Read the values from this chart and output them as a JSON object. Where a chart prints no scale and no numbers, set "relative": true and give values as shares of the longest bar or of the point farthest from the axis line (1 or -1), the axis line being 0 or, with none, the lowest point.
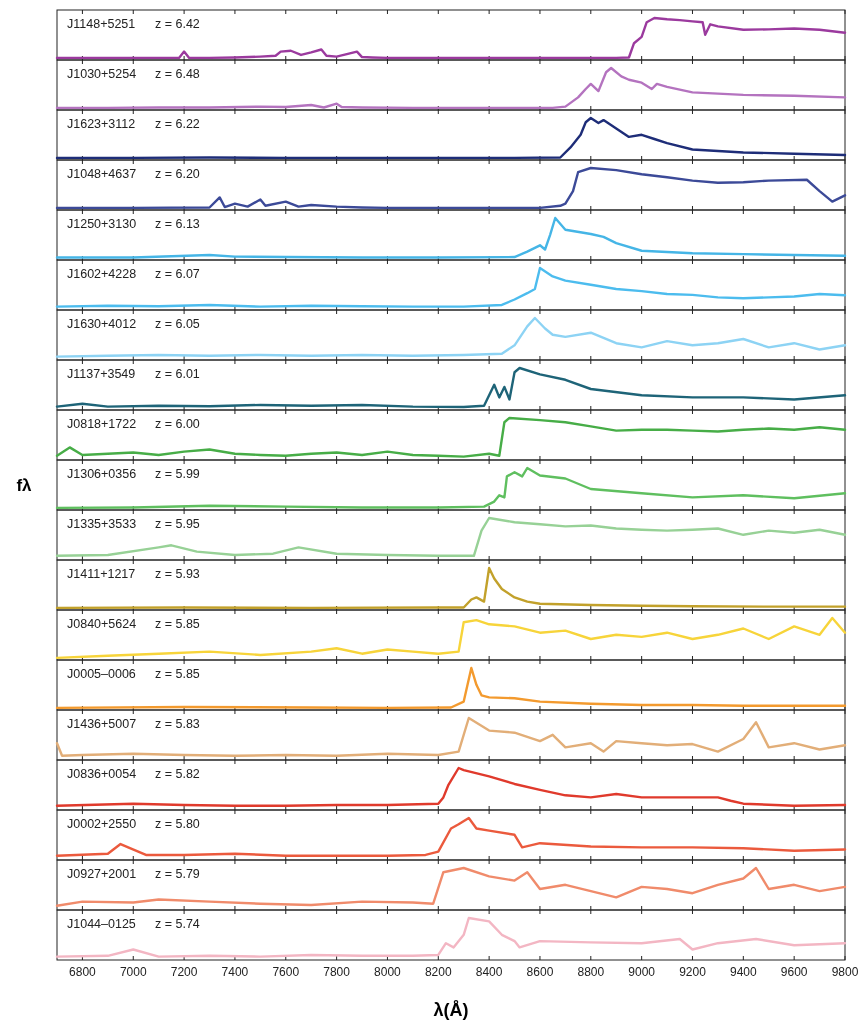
{
  "chart_data": [
    {
      "type": "line",
      "relative": true,
      "xlim": [
        6700,
        9800
      ],
      "xticks": [
        6800,
        7000,
        7200,
        7400,
        7600,
        7800,
        8000,
        8200,
        8400,
        8600,
        8800,
        9000,
        9200,
        9400,
        9600,
        9800
      ],
      "tick_labels": false,
      "annotations": [
        "J1148+5251",
        "z = 6.42"
      ],
      "color": "#9b3a9e",
      "x": [
        6700,
        6800,
        6900,
        7000,
        7100,
        7180,
        7200,
        7220,
        7300,
        7400,
        7500,
        7560,
        7580,
        7620,
        7660,
        7700,
        7740,
        7760,
        7800,
        7880,
        7900,
        7940,
        8000,
        8200,
        8400,
        8600,
        8800,
        8900,
        8950,
        8970,
        9000,
        9020,
        9050,
        9100,
        9150,
        9200,
        9240,
        9250,
        9270,
        9300,
        9400,
        9500,
        9600,
        9700,
        9800
      ],
      "values": [
        0.05,
        0.05,
        0.05,
        0.05,
        0.05,
        0.05,
        0.2,
        0.05,
        0.05,
        0.06,
        0.08,
        0.1,
        0.2,
        0.22,
        0.12,
        0.18,
        0.25,
        0.1,
        0.08,
        0.2,
        0.07,
        0.06,
        0.05,
        0.05,
        0.05,
        0.05,
        0.05,
        0.05,
        0.06,
        0.4,
        0.55,
        0.9,
        1,
        0.97,
        0.95,
        0.92,
        0.9,
        0.6,
        0.85,
        0.8,
        0.72,
        0.73,
        0.75,
        0.72,
        0.65
      ]
    },
    {
      "type": "line",
      "relative": true,
      "xlim": [
        6700,
        9800
      ],
      "xticks": [
        6800,
        7000,
        7200,
        7400,
        7600,
        7800,
        8000,
        8200,
        8400,
        8600,
        8800,
        9000,
        9200,
        9400,
        9600,
        9800
      ],
      "tick_labels": false,
      "annotations": [
        "J1030+5254",
        "z = 6.48"
      ],
      "color": "#b473bf",
      "x": [
        6700,
        6900,
        7100,
        7300,
        7500,
        7600,
        7700,
        7750,
        7800,
        7820,
        7900,
        8100,
        8300,
        8500,
        8650,
        8700,
        8750,
        8780,
        8800,
        8830,
        8860,
        8880,
        8920,
        8950,
        9000,
        9040,
        9060,
        9100,
        9200,
        9400,
        9600,
        9800
      ],
      "values": [
        0.05,
        0.05,
        0.06,
        0.06,
        0.08,
        0.07,
        0.12,
        0.06,
        0.15,
        0.07,
        0.06,
        0.05,
        0.05,
        0.05,
        0.05,
        0.08,
        0.3,
        0.5,
        0.62,
        0.45,
        0.9,
        1,
        0.8,
        0.72,
        0.65,
        0.5,
        0.62,
        0.55,
        0.42,
        0.36,
        0.34,
        0.3
      ]
    },
    {
      "type": "line",
      "relative": true,
      "xlim": [
        6700,
        9800
      ],
      "xticks": [
        6800,
        7000,
        7200,
        7400,
        7600,
        7800,
        8000,
        8200,
        8400,
        8600,
        8800,
        9000,
        9200,
        9400,
        9600,
        9800
      ],
      "tick_labels": false,
      "annotations": [
        "J1623+3112",
        "z = 6.22"
      ],
      "color": "#1e2d78",
      "x": [
        6700,
        7000,
        7300,
        7600,
        7900,
        8200,
        8500,
        8680,
        8720,
        8760,
        8780,
        8800,
        8830,
        8850,
        8900,
        8950,
        9000,
        9050,
        9100,
        9200,
        9400,
        9600,
        9800
      ],
      "values": [
        0.05,
        0.05,
        0.06,
        0.05,
        0.05,
        0.05,
        0.05,
        0.06,
        0.3,
        0.6,
        0.9,
        1,
        0.88,
        0.95,
        0.75,
        0.55,
        0.6,
        0.5,
        0.4,
        0.25,
        0.18,
        0.15,
        0.12
      ]
    },
    {
      "type": "line",
      "relative": true,
      "xlim": [
        6700,
        9800
      ],
      "xticks": [
        6800,
        7000,
        7200,
        7400,
        7600,
        7800,
        8000,
        8200,
        8400,
        8600,
        8800,
        9000,
        9200,
        9400,
        9600,
        9800
      ],
      "tick_labels": false,
      "annotations": [
        "J1048+4637",
        "z = 6.20"
      ],
      "color": "#3c4a98",
      "x": [
        6700,
        7000,
        7300,
        7340,
        7360,
        7400,
        7450,
        7500,
        7520,
        7600,
        7650,
        7700,
        7800,
        7900,
        8000,
        8200,
        8400,
        8600,
        8680,
        8700,
        8730,
        8750,
        8800,
        8900,
        9000,
        9100,
        9200,
        9300,
        9400,
        9500,
        9650,
        9700,
        9750,
        9800
      ],
      "values": [
        0.05,
        0.05,
        0.06,
        0.3,
        0.07,
        0.15,
        0.08,
        0.25,
        0.1,
        0.2,
        0.08,
        0.12,
        0.08,
        0.06,
        0.05,
        0.05,
        0.05,
        0.05,
        0.1,
        0.15,
        0.45,
        0.9,
        1,
        0.95,
        0.85,
        0.78,
        0.7,
        0.65,
        0.66,
        0.7,
        0.72,
        0.45,
        0.2,
        0.35
      ]
    },
    {
      "type": "line",
      "relative": true,
      "xlim": [
        6700,
        9800
      ],
      "xticks": [
        6800,
        7000,
        7200,
        7400,
        7600,
        7800,
        8000,
        8200,
        8400,
        8600,
        8800,
        9000,
        9200,
        9400,
        9600,
        9800
      ],
      "tick_labels": false,
      "annotations": [
        "J1250+3130",
        "z = 6.13"
      ],
      "color": "#45b5e6",
      "x": [
        6700,
        7000,
        7300,
        7400,
        7600,
        7900,
        8200,
        8500,
        8550,
        8600,
        8620,
        8640,
        8660,
        8700,
        8800,
        8850,
        8900,
        9000,
        9200,
        9400,
        9600,
        9800
      ],
      "values": [
        0.06,
        0.06,
        0.12,
        0.08,
        0.07,
        0.06,
        0.06,
        0.07,
        0.2,
        0.35,
        0.25,
        0.6,
        1,
        0.72,
        0.62,
        0.55,
        0.4,
        0.22,
        0.16,
        0.14,
        0.12,
        0.1
      ]
    },
    {
      "type": "line",
      "relative": true,
      "xlim": [
        6700,
        9800
      ],
      "xticks": [
        6800,
        7000,
        7200,
        7400,
        7600,
        7800,
        8000,
        8200,
        8400,
        8600,
        8800,
        9000,
        9200,
        9400,
        9600,
        9800
      ],
      "tick_labels": false,
      "annotations": [
        "J1602+4228",
        "z = 6.07"
      ],
      "color": "#4cbcee",
      "x": [
        6700,
        6900,
        7100,
        7300,
        7500,
        7700,
        7900,
        8100,
        8300,
        8450,
        8500,
        8550,
        8580,
        8600,
        8650,
        8700,
        8800,
        8900,
        9000,
        9100,
        9200,
        9300,
        9400,
        9500,
        9600,
        9700,
        9800
      ],
      "values": [
        0.08,
        0.1,
        0.09,
        0.12,
        0.08,
        0.1,
        0.09,
        0.08,
        0.08,
        0.12,
        0.25,
        0.4,
        0.5,
        1,
        0.8,
        0.7,
        0.6,
        0.5,
        0.45,
        0.38,
        0.36,
        0.3,
        0.28,
        0.3,
        0.32,
        0.38,
        0.35
      ]
    },
    {
      "type": "line",
      "relative": true,
      "xlim": [
        6700,
        9800
      ],
      "xticks": [
        6800,
        7000,
        7200,
        7400,
        7600,
        7800,
        8000,
        8200,
        8400,
        8600,
        8800,
        9000,
        9200,
        9400,
        9600,
        9800
      ],
      "tick_labels": false,
      "annotations": [
        "J1630+4012",
        "z = 6.05"
      ],
      "color": "#8dd3f4",
      "x": [
        6700,
        6900,
        7100,
        7300,
        7500,
        7700,
        7900,
        8100,
        8300,
        8450,
        8500,
        8550,
        8580,
        8620,
        8650,
        8700,
        8800,
        8900,
        9000,
        9100,
        9200,
        9300,
        9400,
        9500,
        9600,
        9700,
        9800
      ],
      "values": [
        0.08,
        0.1,
        0.12,
        0.1,
        0.12,
        0.1,
        0.12,
        0.1,
        0.12,
        0.15,
        0.35,
        0.8,
        1,
        0.75,
        0.6,
        0.55,
        0.65,
        0.4,
        0.3,
        0.45,
        0.35,
        0.4,
        0.5,
        0.3,
        0.4,
        0.25,
        0.35
      ]
    },
    {
      "type": "line",
      "relative": true,
      "xlim": [
        6700,
        9800
      ],
      "xticks": [
        6800,
        7000,
        7200,
        7400,
        7600,
        7800,
        8000,
        8200,
        8400,
        8600,
        8800,
        9000,
        9200,
        9400,
        9600,
        9800
      ],
      "tick_labels": false,
      "annotations": [
        "J1137+3549",
        "z = 6.01"
      ],
      "color": "#1e6478",
      "x": [
        6700,
        6800,
        6900,
        7100,
        7300,
        7500,
        7700,
        7900,
        8100,
        8300,
        8380,
        8420,
        8440,
        8460,
        8480,
        8500,
        8520,
        8600,
        8700,
        8800,
        9000,
        9200,
        9400,
        9600,
        9800
      ],
      "values": [
        0.08,
        0.15,
        0.08,
        0.1,
        0.09,
        0.12,
        0.1,
        0.12,
        0.08,
        0.07,
        0.1,
        0.6,
        0.3,
        0.55,
        0.25,
        0.9,
        1,
        0.85,
        0.72,
        0.5,
        0.35,
        0.3,
        0.3,
        0.25,
        0.35
      ]
    },
    {
      "type": "line",
      "relative": true,
      "xlim": [
        6700,
        9800
      ],
      "xticks": [
        6800,
        7000,
        7200,
        7400,
        7600,
        7800,
        8000,
        8200,
        8400,
        8600,
        8800,
        9000,
        9200,
        9400,
        9600,
        9800
      ],
      "tick_labels": false,
      "annotations": [
        "J0818+1722",
        "z = 6.00"
      ],
      "color": "#47ad47",
      "x": [
        6700,
        6750,
        6800,
        6900,
        7000,
        7100,
        7200,
        7300,
        7400,
        7500,
        7600,
        7700,
        7800,
        7900,
        8000,
        8100,
        8200,
        8300,
        8400,
        8440,
        8460,
        8480,
        8600,
        8700,
        8800,
        8900,
        9000,
        9100,
        9200,
        9300,
        9400,
        9500,
        9600,
        9700,
        9800
      ],
      "values": [
        0.1,
        0.3,
        0.12,
        0.15,
        0.18,
        0.12,
        0.2,
        0.25,
        0.15,
        0.12,
        0.1,
        0.15,
        0.18,
        0.12,
        0.2,
        0.12,
        0.1,
        0.08,
        0.15,
        0.1,
        0.9,
        1,
        0.95,
        0.9,
        0.8,
        0.7,
        0.72,
        0.72,
        0.7,
        0.68,
        0.72,
        0.75,
        0.72,
        0.78,
        0.72
      ]
    },
    {
      "type": "line",
      "relative": true,
      "xlim": [
        6700,
        9800
      ],
      "xticks": [
        6800,
        7000,
        7200,
        7400,
        7600,
        7800,
        8000,
        8200,
        8400,
        8600,
        8800,
        9000,
        9200,
        9400,
        9600,
        9800
      ],
      "tick_labels": false,
      "ylabel": "fλ",
      "annotations": [
        "J1306+0356",
        "z = 5.99"
      ],
      "color": "#5fbf5f",
      "x": [
        6700,
        7000,
        7300,
        7600,
        7900,
        8200,
        8380,
        8420,
        8440,
        8460,
        8470,
        8500,
        8530,
        8550,
        8600,
        8700,
        8800,
        9000,
        9200,
        9400,
        9600,
        9800
      ],
      "values": [
        0.05,
        0.06,
        0.1,
        0.08,
        0.06,
        0.06,
        0.08,
        0.2,
        0.35,
        0.3,
        0.8,
        0.9,
        0.8,
        1,
        0.82,
        0.75,
        0.5,
        0.4,
        0.3,
        0.35,
        0.28,
        0.4
      ]
    },
    {
      "type": "line",
      "relative": true,
      "xlim": [
        6700,
        9800
      ],
      "xticks": [
        6800,
        7000,
        7200,
        7400,
        7600,
        7800,
        8000,
        8200,
        8400,
        8600,
        8800,
        9000,
        9200,
        9400,
        9600,
        9800
      ],
      "tick_labels": false,
      "annotations": [
        "J1335+3533",
        "z = 5.95"
      ],
      "color": "#97d196",
      "x": [
        6700,
        6900,
        7100,
        7150,
        7250,
        7400,
        7550,
        7650,
        7800,
        8000,
        8200,
        8340,
        8370,
        8400,
        8500,
        8600,
        8700,
        8800,
        8900,
        9000,
        9100,
        9200,
        9300,
        9400,
        9500,
        9600,
        9700,
        9800
      ],
      "values": [
        0.1,
        0.12,
        0.3,
        0.35,
        0.2,
        0.12,
        0.15,
        0.3,
        0.15,
        0.12,
        0.1,
        0.1,
        0.7,
        1,
        0.9,
        0.85,
        0.8,
        0.82,
        0.75,
        0.72,
        0.7,
        0.72,
        0.75,
        0.6,
        0.7,
        0.65,
        0.72,
        0.6
      ]
    },
    {
      "type": "line",
      "relative": true,
      "xlim": [
        6700,
        9800
      ],
      "xticks": [
        6800,
        7000,
        7200,
        7400,
        7600,
        7800,
        8000,
        8200,
        8400,
        8600,
        8800,
        9000,
        9200,
        9400,
        9600,
        9800
      ],
      "tick_labels": false,
      "annotations": [
        "J1411+1217",
        "z = 5.93"
      ],
      "color": "#c2a12b",
      "x": [
        6700,
        7200,
        7700,
        8200,
        8300,
        8330,
        8350,
        8380,
        8400,
        8420,
        8450,
        8500,
        8550,
        8600,
        8800,
        9000,
        9200,
        9500,
        9800
      ],
      "values": [
        0.05,
        0.06,
        0.05,
        0.06,
        0.06,
        0.25,
        0.3,
        0.2,
        1,
        0.75,
        0.5,
        0.3,
        0.2,
        0.15,
        0.12,
        0.1,
        0.09,
        0.08,
        0.08
      ]
    },
    {
      "type": "line",
      "relative": true,
      "xlim": [
        6700,
        9800
      ],
      "xticks": [
        6800,
        7000,
        7200,
        7400,
        7600,
        7800,
        8000,
        8200,
        8400,
        8600,
        8800,
        9000,
        9200,
        9400,
        9600,
        9800
      ],
      "tick_labels": false,
      "annotations": [
        "J0840+5624",
        "z = 5.85"
      ],
      "color": "#f7d43a",
      "x": [
        6700,
        6900,
        7100,
        7300,
        7500,
        7700,
        7800,
        7900,
        8000,
        8100,
        8200,
        8280,
        8300,
        8350,
        8400,
        8500,
        8600,
        8700,
        8800,
        8900,
        9000,
        9100,
        9200,
        9300,
        9400,
        9500,
        9600,
        9700,
        9750,
        9800
      ],
      "values": [
        0.05,
        0.1,
        0.15,
        0.2,
        0.12,
        0.2,
        0.28,
        0.15,
        0.25,
        0.2,
        0.15,
        0.2,
        0.9,
        0.95,
        0.85,
        0.8,
        0.65,
        0.7,
        0.5,
        0.6,
        0.55,
        0.65,
        0.5,
        0.6,
        0.75,
        0.5,
        0.8,
        0.6,
        1,
        0.65
      ]
    },
    {
      "type": "line",
      "relative": true,
      "xlim": [
        6700,
        9800
      ],
      "xticks": [
        6800,
        7000,
        7200,
        7400,
        7600,
        7800,
        8000,
        8200,
        8400,
        8600,
        8800,
        9000,
        9200,
        9400,
        9600,
        9800
      ],
      "tick_labels": false,
      "annotations": [
        "J0005–0006",
        "z = 5.85"
      ],
      "color": "#f39a2e",
      "x": [
        6700,
        7200,
        7700,
        8000,
        8250,
        8300,
        8330,
        8350,
        8370,
        8400,
        8500,
        8600,
        8800,
        9000,
        9200,
        9400,
        9600,
        9800
      ],
      "values": [
        0.05,
        0.07,
        0.06,
        0.05,
        0.06,
        0.2,
        1,
        0.6,
        0.35,
        0.3,
        0.28,
        0.2,
        0.15,
        0.12,
        0.12,
        0.1,
        0.1,
        0.1
      ]
    },
    {
      "type": "line",
      "relative": true,
      "xlim": [
        6700,
        9800
      ],
      "xticks": [
        6800,
        7000,
        7200,
        7400,
        7600,
        7800,
        8000,
        8200,
        8400,
        8600,
        8800,
        9000,
        9200,
        9400,
        9600,
        9800
      ],
      "tick_labels": false,
      "annotations": [
        "J1436+5007",
        "z = 5.83"
      ],
      "color": "#e2ae78",
      "x": [
        6700,
        6720,
        6800,
        7000,
        7200,
        7400,
        7600,
        7800,
        8000,
        8200,
        8280,
        8320,
        8400,
        8500,
        8600,
        8650,
        8700,
        8800,
        8850,
        8900,
        9000,
        9100,
        9200,
        9300,
        9400,
        9450,
        9500,
        9600,
        9700,
        9800
      ],
      "values": [
        0.4,
        0.1,
        0.12,
        0.15,
        0.12,
        0.1,
        0.12,
        0.1,
        0.15,
        0.12,
        0.2,
        1,
        0.7,
        0.65,
        0.45,
        0.6,
        0.3,
        0.4,
        0.2,
        0.45,
        0.4,
        0.35,
        0.38,
        0.2,
        0.5,
        0.9,
        0.3,
        0.4,
        0.25,
        0.35
      ]
    },
    {
      "type": "line",
      "relative": true,
      "xlim": [
        6700,
        9800
      ],
      "xticks": [
        6800,
        7000,
        7200,
        7400,
        7600,
        7800,
        8000,
        8200,
        8400,
        8600,
        8800,
        9000,
        9200,
        9400,
        9600,
        9800
      ],
      "tick_labels": false,
      "annotations": [
        "J0836+0054",
        "z = 5.82"
      ],
      "color": "#e03a2c",
      "x": [
        6700,
        7000,
        7200,
        7400,
        7600,
        7800,
        8000,
        8200,
        8220,
        8240,
        8280,
        8300,
        8400,
        8500,
        8600,
        8700,
        8800,
        8900,
        9000,
        9200,
        9300,
        9350,
        9400,
        9600,
        9800
      ],
      "values": [
        0.1,
        0.15,
        0.12,
        0.1,
        0.1,
        0.12,
        0.12,
        0.15,
        0.3,
        0.6,
        1,
        0.95,
        0.8,
        0.62,
        0.48,
        0.35,
        0.3,
        0.38,
        0.3,
        0.3,
        0.3,
        0.22,
        0.15,
        0.1,
        0.12
      ]
    },
    {
      "type": "line",
      "relative": true,
      "xlim": [
        6700,
        9800
      ],
      "xticks": [
        6800,
        7000,
        7200,
        7400,
        7600,
        7800,
        8000,
        8200,
        8400,
        8600,
        8800,
        9000,
        9200,
        9400,
        9600,
        9800
      ],
      "tick_labels": false,
      "annotations": [
        "J0002+2550",
        "z = 5.80"
      ],
      "color": "#eb5a3d",
      "x": [
        6700,
        6900,
        6950,
        6980,
        7050,
        7200,
        7400,
        7600,
        7800,
        8000,
        8150,
        8200,
        8250,
        8280,
        8320,
        8350,
        8400,
        8500,
        8530,
        8600,
        8800,
        9000,
        9200,
        9400,
        9600,
        9800
      ],
      "values": [
        0.1,
        0.15,
        0.38,
        0.3,
        0.12,
        0.12,
        0.15,
        0.1,
        0.1,
        0.1,
        0.12,
        0.2,
        0.75,
        0.85,
        1,
        0.75,
        0.7,
        0.6,
        0.3,
        0.4,
        0.32,
        0.3,
        0.3,
        0.28,
        0.22,
        0.25
      ]
    },
    {
      "type": "line",
      "relative": true,
      "xlim": [
        6700,
        9800
      ],
      "xticks": [
        6800,
        7000,
        7200,
        7400,
        7600,
        7800,
        8000,
        8200,
        8400,
        8600,
        8800,
        9000,
        9200,
        9400,
        9600,
        9800
      ],
      "tick_labels": false,
      "annotations": [
        "J0927+2001",
        "z = 5.79"
      ],
      "color": "#f08b6b",
      "x": [
        6700,
        6800,
        7000,
        7100,
        7300,
        7500,
        7700,
        7900,
        8100,
        8180,
        8220,
        8300,
        8400,
        8500,
        8550,
        8600,
        8700,
        8800,
        8900,
        9000,
        9100,
        9200,
        9300,
        9400,
        9450,
        9500,
        9600,
        9700,
        9800
      ],
      "values": [
        0.1,
        0.2,
        0.18,
        0.25,
        0.2,
        0.15,
        0.12,
        0.2,
        0.18,
        0.15,
        0.9,
        1,
        0.8,
        0.7,
        0.9,
        0.5,
        0.6,
        0.45,
        0.3,
        0.55,
        0.5,
        0.4,
        0.6,
        0.75,
        1,
        0.5,
        0.6,
        0.45,
        0.55
      ]
    },
    {
      "type": "line",
      "relative": true,
      "xlim": [
        6700,
        9800
      ],
      "xticks": [
        6800,
        7000,
        7200,
        7400,
        7600,
        7800,
        8000,
        8200,
        8400,
        8600,
        8800,
        9000,
        9200,
        9400,
        9600,
        9800
      ],
      "tick_labels": "x",
      "xlabel": "λ(Å)",
      "annotations": [
        "J1044–0125",
        "z = 5.74"
      ],
      "color": "#f3b6c3",
      "x": [
        6700,
        6900,
        7000,
        7100,
        7300,
        7500,
        7700,
        7900,
        8100,
        8200,
        8230,
        8260,
        8300,
        8320,
        8400,
        8450,
        8500,
        8520,
        8600,
        8800,
        9000,
        9150,
        9200,
        9300,
        9450,
        9600,
        9800
      ],
      "values": [
        0.08,
        0.1,
        0.25,
        0.08,
        0.1,
        0.08,
        0.12,
        0.1,
        0.1,
        0.12,
        0.4,
        0.3,
        0.6,
        1,
        0.92,
        0.6,
        0.45,
        0.3,
        0.45,
        0.42,
        0.4,
        0.5,
        0.25,
        0.4,
        0.5,
        0.35,
        0.4
      ]
    }
  ]
}
